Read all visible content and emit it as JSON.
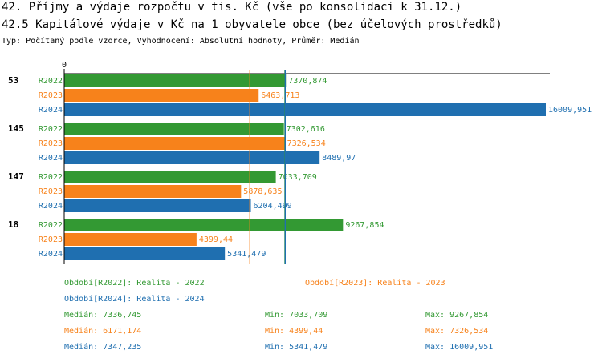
{
  "chart_data": {
    "type": "bar",
    "title": "42. Příjmy a výdaje rozpočtu v tis. Kč (vše po konsolidaci k 31.12.)",
    "subtitle": "42.5 Kapitálové výdaje v Kč na 1 obyvatele obce (bez účelových prostředků)",
    "note": "Typ: Počítaný podle vzorce, Vyhodnocení: Absolutní hodnoty, Průměr: Medián",
    "categories": [
      "53",
      "145",
      "147",
      "18"
    ],
    "series": [
      {
        "name": "R2022",
        "color": "#339933",
        "period": "Období[R2022]: Realita - 2022",
        "values": [
          7370.874,
          7302.616,
          7033.709,
          9267.854
        ],
        "value_labels": [
          "7370,874",
          "7302,616",
          "7033,709",
          "9267,854"
        ],
        "median": 7336.745,
        "stats": [
          "Medián: 7336,745",
          "Min: 7033,709",
          "Max: 9267,854"
        ]
      },
      {
        "name": "R2023",
        "color": "#f7821b",
        "period": "Období[R2023]: Realita - 2023",
        "values": [
          6463.713,
          7326.534,
          5878.635,
          4399.44
        ],
        "value_labels": [
          "6463,713",
          "7326,534",
          "5878,635",
          "4399,44"
        ],
        "median": 6171.174,
        "stats": [
          "Medián: 6171,174",
          "Min: 4399,44",
          "Max: 7326,534"
        ]
      },
      {
        "name": "R2024",
        "color": "#1f6fb0",
        "period": "Období[R2024]: Realita - 2024",
        "values": [
          16009.951,
          8489.97,
          6204.499,
          5341.479
        ],
        "value_labels": [
          "16009,951",
          "8489,97",
          "6204,499",
          "5341,479"
        ],
        "median": 7347.235,
        "stats": [
          "Medián: 7347,235",
          "Min: 5341,479",
          "Max: 16009,951"
        ]
      }
    ],
    "xlim": [
      0,
      16009.951
    ],
    "xticks": [
      0
    ]
  }
}
